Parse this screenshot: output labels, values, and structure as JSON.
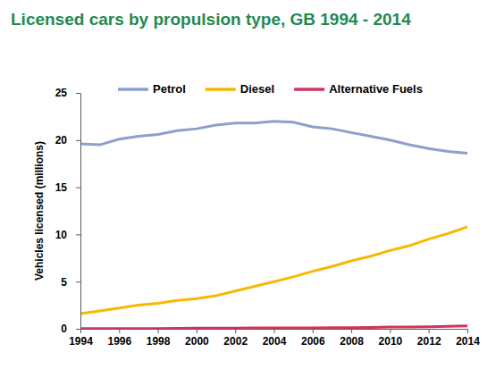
{
  "chart_data": {
    "type": "line",
    "title": "Licensed cars by propulsion type, GB 1994 - 2014",
    "y_label": "Vehicles licensed (millions)",
    "x": [
      1994,
      1995,
      1996,
      1997,
      1998,
      1999,
      2000,
      2001,
      2002,
      2003,
      2004,
      2005,
      2006,
      2007,
      2008,
      2009,
      2010,
      2011,
      2012,
      2013,
      2014
    ],
    "series": [
      {
        "name": "Petrol",
        "color": "#8e9fca",
        "values": [
          19.6,
          19.5,
          20.1,
          20.4,
          20.6,
          21.0,
          21.2,
          21.6,
          21.8,
          21.8,
          22.0,
          21.9,
          21.4,
          21.2,
          20.8,
          20.4,
          20.0,
          19.5,
          19.1,
          18.8,
          18.6
        ]
      },
      {
        "name": "Diesel",
        "color": "#f7b900",
        "values": [
          1.6,
          1.9,
          2.2,
          2.5,
          2.7,
          3.0,
          3.2,
          3.5,
          4.0,
          4.5,
          5.0,
          5.5,
          6.1,
          6.6,
          7.2,
          7.7,
          8.3,
          8.8,
          9.5,
          10.1,
          10.8
        ]
      },
      {
        "name": "Alternative Fuels",
        "color": "#d2345c",
        "values": [
          0.02,
          0.02,
          0.02,
          0.03,
          0.03,
          0.05,
          0.06,
          0.07,
          0.08,
          0.09,
          0.1,
          0.1,
          0.1,
          0.11,
          0.12,
          0.15,
          0.18,
          0.2,
          0.22,
          0.26,
          0.3
        ]
      }
    ],
    "xlim": [
      1994,
      2014
    ],
    "xticks": [
      1994,
      1996,
      1998,
      2000,
      2002,
      2004,
      2006,
      2008,
      2010,
      2012,
      2014
    ],
    "ylim": [
      0,
      25
    ],
    "yticks": [
      0,
      5,
      10,
      15,
      20,
      25
    ],
    "grid": false,
    "legend": "top"
  }
}
